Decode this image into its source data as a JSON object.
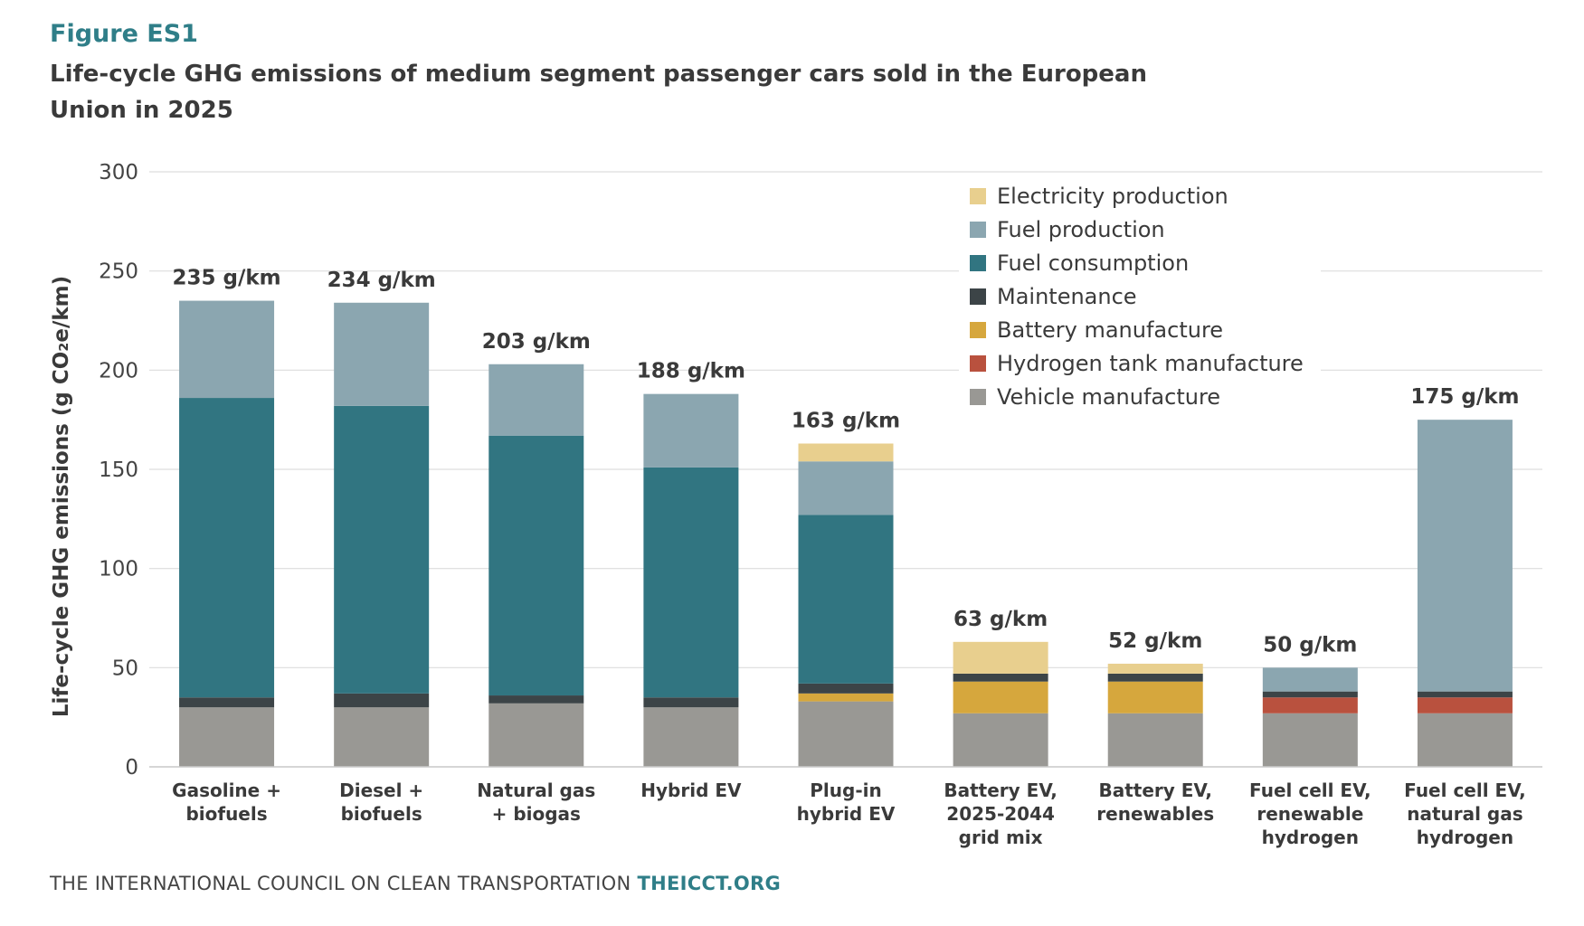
{
  "figure_label": "Figure ES1",
  "title": "Life-cycle GHG emissions of medium segment passenger cars sold in the European Union in 2025",
  "footer": {
    "org": "THE INTERNATIONAL COUNCIL ON CLEAN TRANSPORTATION",
    "site": "THEICCT.ORG"
  },
  "chart_data": {
    "type": "bar",
    "stacked": true,
    "ylabel": "Life-cycle GHG emissions (g CO₂e/km)",
    "ylim": [
      0,
      300
    ],
    "yticks": [
      "0",
      "50",
      "100",
      "150",
      "200",
      "250",
      "300"
    ],
    "grid": true,
    "legend_position": "top-right",
    "categories": [
      [
        "Gasoline +",
        "biofuels"
      ],
      [
        "Diesel +",
        "biofuels"
      ],
      [
        "Natural gas",
        "+ biogas"
      ],
      [
        "Hybrid EV"
      ],
      [
        "Plug-in",
        "hybrid EV"
      ],
      [
        "Battery EV,",
        "2025-2044",
        "grid mix"
      ],
      [
        "Battery EV,",
        "renewables"
      ],
      [
        "Fuel cell EV,",
        "renewable",
        "hydrogen"
      ],
      [
        "Fuel cell EV,",
        "natural gas",
        "hydrogen"
      ]
    ],
    "totals": [
      "235 g/km",
      "234 g/km",
      "203 g/km",
      "188 g/km",
      "163 g/km",
      "63 g/km",
      "52 g/km",
      "50 g/km",
      "175 g/km"
    ],
    "series": [
      {
        "name": "Vehicle manufacture",
        "color": "#999894",
        "values": [
          30,
          30,
          32,
          30,
          33,
          27,
          27,
          27,
          27
        ]
      },
      {
        "name": "Hydrogen tank manufacture",
        "color": "#b9513e",
        "values": [
          0,
          0,
          0,
          0,
          0,
          0,
          0,
          8,
          8
        ]
      },
      {
        "name": "Battery manufacture",
        "color": "#d6a73d",
        "values": [
          0,
          0,
          0,
          0,
          4,
          16,
          16,
          0,
          0
        ]
      },
      {
        "name": "Maintenance",
        "color": "#3c4447",
        "values": [
          5,
          7,
          4,
          5,
          5,
          4,
          4,
          3,
          3
        ]
      },
      {
        "name": "Fuel consumption",
        "color": "#317581",
        "values": [
          151,
          145,
          131,
          116,
          85,
          0,
          0,
          0,
          0
        ]
      },
      {
        "name": "Fuel production",
        "color": "#8ba6b0",
        "values": [
          49,
          52,
          36,
          37,
          27,
          0,
          0,
          12,
          137
        ]
      },
      {
        "name": "Electricity production",
        "color": "#e8cf8e",
        "values": [
          0,
          0,
          0,
          0,
          9,
          16,
          5,
          0,
          0
        ]
      }
    ],
    "legend_order": [
      "Electricity production",
      "Fuel production",
      "Fuel consumption",
      "Maintenance",
      "Battery manufacture",
      "Hydrogen tank manufacture",
      "Vehicle manufacture"
    ]
  }
}
